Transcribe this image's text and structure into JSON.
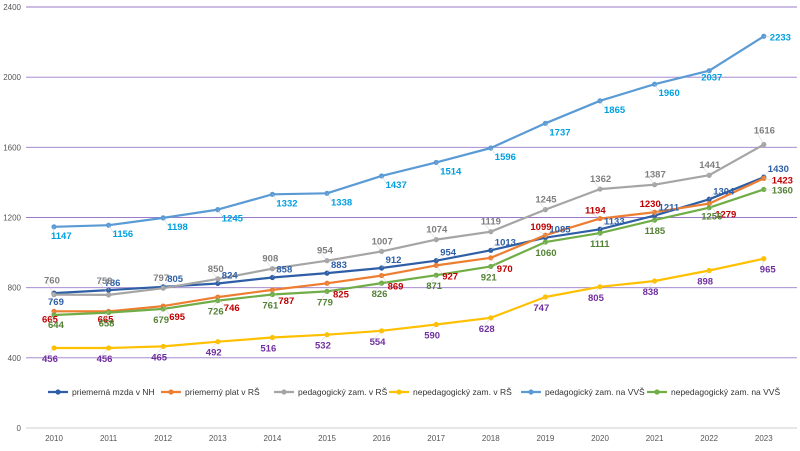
{
  "chart_data": {
    "type": "line",
    "title": "",
    "xlabel": "",
    "ylabel": "",
    "ylim": [
      0,
      2400
    ],
    "y_ticks": [
      0,
      400,
      800,
      1200,
      1600,
      2000,
      2400
    ],
    "categories": [
      "2010",
      "2011",
      "2012",
      "2013",
      "2014",
      "2015",
      "2016",
      "2017",
      "2018",
      "2019",
      "2020",
      "2021",
      "2022",
      "2023"
    ],
    "grid": true,
    "legend_position": "bottom",
    "series": [
      {
        "name": "priemerná mzda v NH",
        "color": "#2E5FA6",
        "label_color": "#2E5FA6",
        "values": [
          769,
          786,
          805,
          824,
          858,
          883,
          912,
          954,
          1013,
          1085,
          1133,
          1211,
          1304,
          1430
        ]
      },
      {
        "name": "priemerný plat v RŠ",
        "color": "#ED7D31",
        "label_color": "#C00000",
        "values": [
          665,
          665,
          695,
          746,
          787,
          825,
          869,
          927,
          970,
          1099,
          1194,
          1230,
          1279,
          1423
        ]
      },
      {
        "name": "pedagogický zam. v RŠ",
        "color": "#A5A5A5",
        "label_color": "#7F7F7F",
        "values": [
          760,
          759,
          797,
          850,
          908,
          954,
          1007,
          1074,
          1119,
          1245,
          1362,
          1387,
          1441,
          1616
        ]
      },
      {
        "name": "nepedagogický zam. v RŠ",
        "color": "#FFC000",
        "label_color": "#7030A0",
        "values": [
          456,
          456,
          465,
          492,
          516,
          532,
          554,
          590,
          628,
          747,
          805,
          838,
          898,
          965
        ]
      },
      {
        "name": "pedagogický zam. na VVŠ",
        "color": "#5B9BD5",
        "label_color": "#00A0E0",
        "values": [
          1147,
          1156,
          1198,
          1245,
          1332,
          1338,
          1437,
          1514,
          1596,
          1737,
          1865,
          1960,
          2037,
          2233
        ]
      },
      {
        "name": "nepedagogický zam. na VVŠ",
        "color": "#70AD47",
        "label_color": "#548235",
        "values": [
          644,
          658,
          679,
          726,
          761,
          779,
          826,
          871,
          921,
          1060,
          1111,
          1185,
          1256,
          1360
        ]
      }
    ]
  }
}
